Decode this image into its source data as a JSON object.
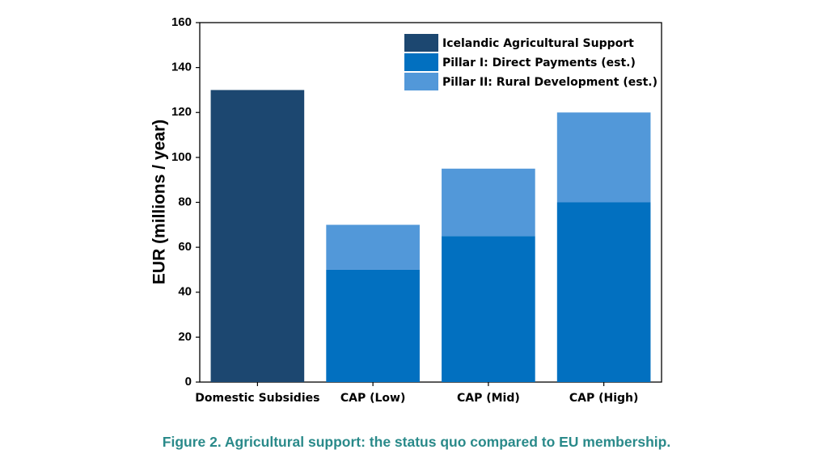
{
  "chart_data": {
    "type": "bar",
    "stacked": true,
    "categories": [
      "Domestic Subsidies",
      "CAP (Low)",
      "CAP (Mid)",
      "CAP (High)"
    ],
    "series": [
      {
        "name": "Icelandic Agricultural Support",
        "color": "#1c4770",
        "values": [
          130,
          0,
          0,
          0
        ]
      },
      {
        "name": "Pillar I: Direct Payments (est.)",
        "color": "#0270c0",
        "values": [
          0,
          50,
          65,
          80
        ]
      },
      {
        "name": "Pillar II: Rural Development (est.)",
        "color": "#5298d9",
        "values": [
          0,
          20,
          30,
          40
        ]
      }
    ],
    "xlabel": "",
    "ylabel": "EUR (millions / year)",
    "ylim": [
      0,
      160
    ],
    "yticks": [
      0,
      20,
      40,
      60,
      80,
      100,
      120,
      140,
      160
    ],
    "legend_position": "top-right",
    "grid": false
  },
  "caption": "Figure 2. Agricultural support: the status quo compared to EU membership."
}
